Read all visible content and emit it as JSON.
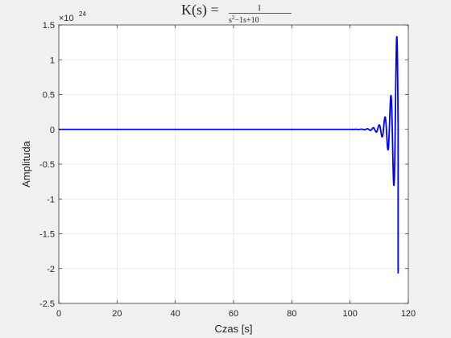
{
  "chart_data": {
    "type": "line",
    "title": {
      "lhs": "K(s) =",
      "numerator": "1",
      "denominator": {
        "s_base": "s",
        "s_exponent": "2",
        "rest": "−1s+10"
      }
    },
    "xlabel": "Czas [s]",
    "ylabel": "Amplituda",
    "exponent_label": {
      "base": "×10",
      "power": "24"
    },
    "xlim": [
      0,
      120
    ],
    "ylim": [
      -2.5,
      1.5
    ],
    "xticks": [
      0,
      20,
      40,
      60,
      80,
      100,
      120
    ],
    "yticks": [
      -2.5,
      -2,
      -1.5,
      -1,
      -0.5,
      0,
      0.5,
      1,
      1.5
    ],
    "xtick_labels": [
      "0",
      "20",
      "40",
      "60",
      "80",
      "100",
      "120"
    ],
    "ytick_labels": [
      "-2.5",
      "-2",
      "-1.5",
      "-1",
      "-0.5",
      "0",
      "0.5",
      "1",
      "1.5"
    ],
    "grid": true,
    "series": [
      {
        "color": "#0000ff",
        "model": {
          "envelope_scale": 1.315,
          "growth_rate": 0.5,
          "omega": 3.12,
          "t_peak": 116,
          "t_start": 0,
          "t_end": 116.5
        },
        "points": [
          [
            0,
            0
          ],
          [
            20,
            0
          ],
          [
            40,
            0
          ],
          [
            60,
            0
          ],
          [
            80,
            0
          ],
          [
            100,
            0.0002
          ],
          [
            104,
            0.004
          ],
          [
            106,
            0.01
          ],
          [
            108,
            0.02
          ],
          [
            110,
            0.05
          ],
          [
            112,
            0.14
          ],
          [
            113,
            -0.25
          ],
          [
            114,
            0.47
          ],
          [
            115,
            -0.79
          ],
          [
            116,
            1.315
          ],
          [
            116.5,
            -2.07
          ]
        ]
      }
    ]
  }
}
